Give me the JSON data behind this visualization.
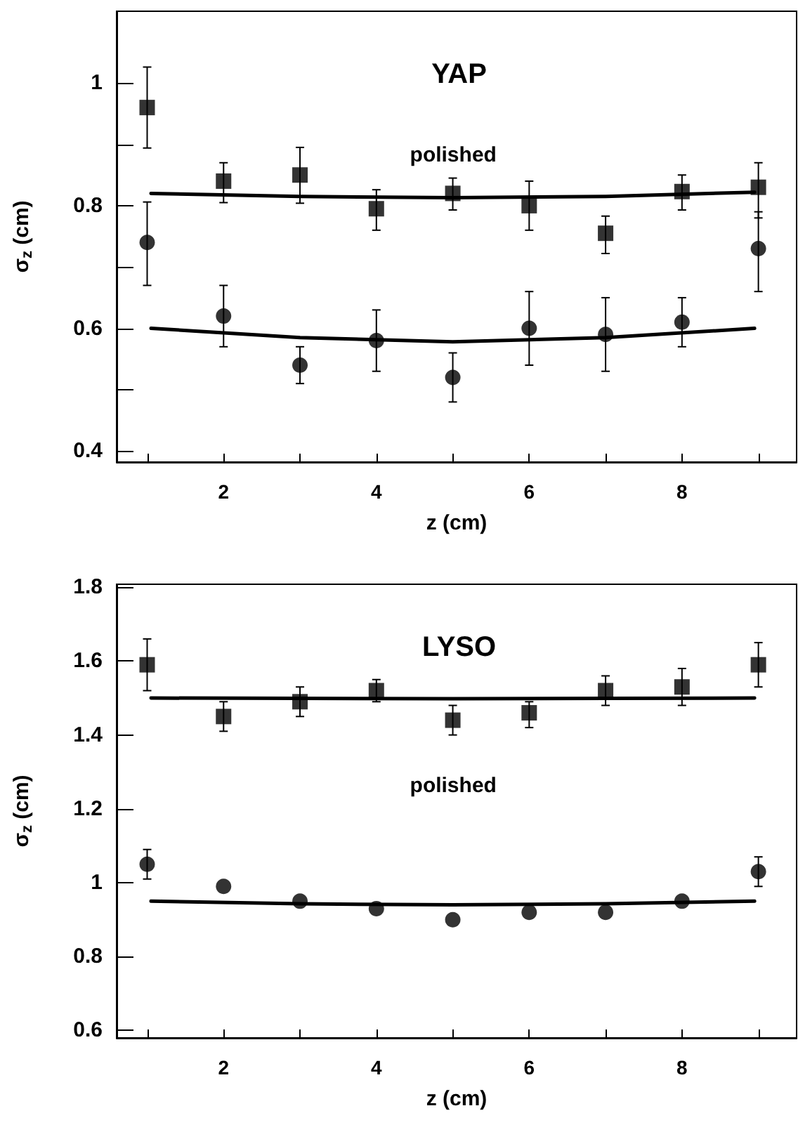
{
  "chart_data": [
    {
      "type": "scatter",
      "title": "YAP",
      "xlabel": "z (cm)",
      "ylabel": "σ$_{z}$ (cm)",
      "xlim": [
        0.6,
        9.5
      ],
      "ylim": [
        0.382,
        1.117
      ],
      "xticks": [
        {
          "value": 1,
          "label": null
        },
        2,
        {
          "value": 3,
          "label": null
        },
        4,
        {
          "value": 5,
          "label": null
        },
        6,
        {
          "value": 7,
          "label": null
        },
        8,
        {
          "value": 9,
          "label": null
        }
      ],
      "yticks": [
        0.4,
        {
          "value": 0.5,
          "label": null
        },
        0.6,
        {
          "value": 0.7,
          "label": null
        },
        0.8,
        {
          "value": 0.9,
          "label": null
        },
        1
      ],
      "grid": false,
      "annotations": [
        "polished"
      ],
      "series": [
        {
          "marker": "square",
          "color": "#000000",
          "x": [
            1,
            2,
            3,
            4,
            5,
            6,
            7,
            8,
            9
          ],
          "values": [
            0.96,
            0.84,
            0.85,
            0.795,
            0.82,
            0.8,
            0.755,
            0.823,
            0.83
          ],
          "errors": [
            [
              0.894,
              1.026
            ],
            [
              0.805,
              0.87
            ],
            [
              0.804,
              0.895
            ],
            [
              0.76,
              0.826
            ],
            [
              0.793,
              0.845
            ],
            [
              0.76,
              0.84
            ],
            [
              0.722,
              0.783
            ],
            [
              0.793,
              0.85
            ],
            [
              0.78,
              0.87
            ]
          ]
        },
        {
          "marker": "circle",
          "color": "#000000",
          "x": [
            1,
            2,
            3,
            4,
            5,
            6,
            7,
            8,
            9
          ],
          "values": [
            0.74,
            0.62,
            0.54,
            0.58,
            0.52,
            0.6,
            0.59,
            0.61,
            0.73
          ],
          "errors": [
            [
              0.67,
              0.806
            ],
            [
              0.57,
              0.67
            ],
            [
              0.51,
              0.57
            ],
            [
              0.53,
              0.63
            ],
            [
              0.48,
              0.56
            ],
            [
              0.54,
              0.66
            ],
            [
              0.53,
              0.65
            ],
            [
              0.57,
              0.65
            ],
            [
              0.66,
              0.79
            ]
          ]
        },
        {
          "type": "line",
          "marker": "none",
          "color": "#000000",
          "x": [
            1.05,
            3,
            5,
            7,
            8.95
          ],
          "values": [
            0.82,
            0.815,
            0.813,
            0.815,
            0.822
          ]
        },
        {
          "type": "line",
          "marker": "none",
          "color": "#000000",
          "x": [
            1.05,
            3,
            5,
            7,
            8.95
          ],
          "values": [
            0.6,
            0.585,
            0.578,
            0.585,
            0.6
          ]
        }
      ]
    },
    {
      "type": "scatter",
      "title": "LYSO",
      "xlabel": "z (cm)",
      "ylabel": "σ$_{z}$ (cm)",
      "xlim": [
        0.6,
        9.5
      ],
      "ylim": [
        0.58,
        1.808
      ],
      "xticks": [
        {
          "value": 1,
          "label": null
        },
        2,
        {
          "value": 3,
          "label": null
        },
        4,
        {
          "value": 5,
          "label": null
        },
        6,
        {
          "value": 7,
          "label": null
        },
        8,
        {
          "value": 9,
          "label": null
        }
      ],
      "yticks": [
        {
          "value": 0.6,
          "label": "0.6"
        },
        {
          "value": 0.8,
          "label": "0.8"
        },
        {
          "value": 1,
          "label": "1"
        },
        {
          "value": 1.2,
          "label": "1.2"
        },
        {
          "value": 1.4,
          "label": "1.4"
        },
        {
          "value": 1.6,
          "label": "1.6"
        },
        {
          "value": 1.8,
          "label": "1.8"
        }
      ],
      "grid": false,
      "annotations": [
        "polished"
      ],
      "series": [
        {
          "marker": "square",
          "color": "#000000",
          "x": [
            1,
            2,
            3,
            4,
            5,
            6,
            7,
            8,
            9
          ],
          "values": [
            1.59,
            1.45,
            1.49,
            1.52,
            1.44,
            1.46,
            1.52,
            1.53,
            1.59
          ],
          "errors": [
            [
              1.52,
              1.66
            ],
            [
              1.41,
              1.49
            ],
            [
              1.45,
              1.53
            ],
            [
              1.49,
              1.55
            ],
            [
              1.4,
              1.48
            ],
            [
              1.42,
              1.49
            ],
            [
              1.48,
              1.56
            ],
            [
              1.48,
              1.58
            ],
            [
              1.53,
              1.65
            ]
          ]
        },
        {
          "marker": "circle",
          "color": "#000000",
          "x": [
            1,
            2,
            3,
            4,
            5,
            6,
            7,
            8,
            9
          ],
          "values": [
            1.05,
            0.99,
            0.95,
            0.93,
            0.9,
            0.92,
            0.92,
            0.95,
            1.03
          ],
          "errors": [
            [
              1.01,
              1.09
            ],
            null,
            null,
            null,
            null,
            null,
            null,
            null,
            [
              0.99,
              1.07
            ]
          ]
        },
        {
          "type": "line",
          "marker": "none",
          "color": "#000000",
          "x": [
            1.05,
            3,
            5,
            7,
            8.95
          ],
          "values": [
            1.5,
            1.499,
            1.498,
            1.499,
            1.5
          ]
        },
        {
          "type": "line",
          "marker": "none",
          "color": "#000000",
          "x": [
            1.05,
            3,
            5,
            7,
            8.95
          ],
          "values": [
            0.95,
            0.943,
            0.94,
            0.943,
            0.95
          ]
        }
      ]
    }
  ]
}
